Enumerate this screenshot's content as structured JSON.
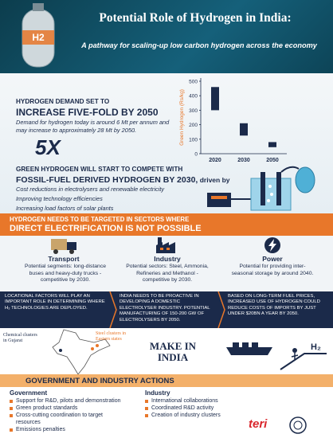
{
  "header": {
    "title": "Potential Role of Hydrogen in India:",
    "subtitle": "A pathway for scaling-up low carbon hydrogen across the economy"
  },
  "demand": {
    "kicker": "HYDROGEN DEMAND SET TO",
    "headline": "INCREASE FIVE-FOLD BY 2050",
    "text": "Demand for hydrogen today is around 6 Mt per annum and may increase to approximately 28 Mt by 2050.",
    "multiplier": "5X"
  },
  "chart_data": {
    "type": "floating-bar",
    "y_label": "Green Hydrogen (Rs/kg)",
    "categories": [
      "2020",
      "2030",
      "2050"
    ],
    "low": [
      300,
      125,
      45
    ],
    "high": [
      460,
      210,
      80
    ],
    "color": "#1b2a4a",
    "label_color": "#e8772a",
    "ylim": [
      0,
      500
    ],
    "yticks": [
      0,
      100,
      200,
      300,
      400,
      500
    ]
  },
  "competition": {
    "kicker": "GREEN HYDROGEN WILL START TO COMPETE WITH",
    "headline": "FOSSIL-FUEL DERIVED HYDROGEN BY 2030,",
    "headline_suffix": " driven by",
    "drivers": [
      "Cost reductions in electrolysers and renewable electricity",
      "Improving technology efficiencies",
      "Increasing load factors of solar plants"
    ]
  },
  "sectors": {
    "kicker": "HYDROGEN NEEDS TO BE TARGETED IN SECTORS WHERE",
    "headline": "DIRECT ELECTRIFICATION IS NOT POSSIBLE",
    "items": [
      {
        "name": "Transport",
        "text": "Potential segments: long-distance buses and heavy-duty trucks - competitive by 2030."
      },
      {
        "name": "Industry",
        "text": "Potential sectors: Steel, Ammonia, Refineries and Methanol - competitive by 2030."
      },
      {
        "name": "Power",
        "text": "Potential for providing inter-seasonal storage by around 2040."
      }
    ]
  },
  "factors": [
    "Locational factors will play an important role in determining where H₂ technologies are deployed.",
    "India needs to be proactive in developing a domestic electrolyser industry. Potential manufacturing of 150-200 GW of electrolysers by 2050.",
    "Based on long-term fuel prices, increased use of hydrogen could reduce costs of imports by just under $20bn a year by 2050."
  ],
  "map": {
    "labels": [
      "Chemical clusters in Gujarat",
      "Steel clusters in Eastern states"
    ],
    "slogan": "MAKE IN INDIA",
    "h2": "H₂"
  },
  "actions": {
    "title": "GOVERNMENT AND INDUSTRY ACTIONS",
    "columns": [
      {
        "heading": "Government",
        "items": [
          "Support for R&D, pilots and demonstration",
          "Green product standards",
          "Cross-cutting coordination to target resources",
          "Emissions penalties"
        ]
      },
      {
        "heading": "Industry",
        "items": [
          "International collaborations",
          "Coordinated R&D activity",
          "Creation of industry clusters"
        ]
      }
    ]
  },
  "logo": "teri"
}
